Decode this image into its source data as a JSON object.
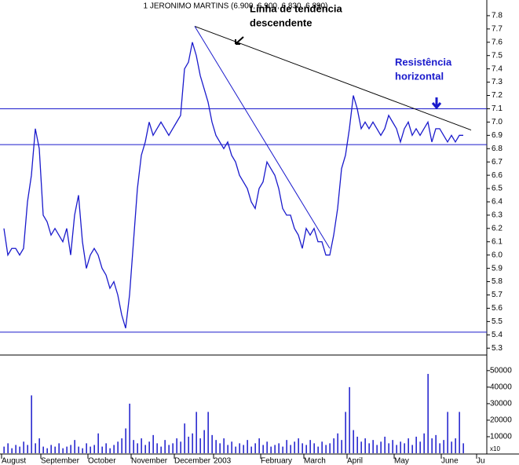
{
  "chart_data": {
    "type": "line",
    "title": "1 JERONIMO MARTINS (6.900, 6.900, 6.830, 6.890)",
    "annotations": [
      {
        "lines": [
          "Linha de tendência",
          "descendente"
        ],
        "color": "#000000"
      },
      {
        "lines": [
          "Resistência",
          "horizontal"
        ],
        "color": "#1a1acc"
      }
    ],
    "volume_unit_label": "x10",
    "categories": [
      "August",
      null,
      null,
      null,
      null,
      null,
      null,
      null,
      null,
      null,
      "September",
      null,
      null,
      null,
      null,
      null,
      null,
      null,
      null,
      null,
      null,
      null,
      "October",
      null,
      null,
      null,
      null,
      null,
      null,
      null,
      null,
      null,
      null,
      "November",
      null,
      null,
      null,
      null,
      null,
      null,
      null,
      null,
      null,
      null,
      "December",
      null,
      null,
      null,
      null,
      null,
      null,
      null,
      null,
      null,
      "2003",
      null,
      null,
      null,
      null,
      null,
      null,
      null,
      null,
      null,
      null,
      null,
      "February",
      null,
      null,
      null,
      null,
      null,
      null,
      null,
      null,
      null,
      null,
      "March",
      null,
      null,
      null,
      null,
      null,
      null,
      null,
      null,
      null,
      null,
      "April",
      null,
      null,
      null,
      null,
      null,
      null,
      null,
      null,
      null,
      null,
      null,
      "May",
      null,
      null,
      null,
      null,
      null,
      null,
      null,
      null,
      null,
      null,
      null,
      "June",
      null,
      null,
      null,
      null,
      null,
      null,
      null,
      null,
      "Ju"
    ],
    "series": [
      {
        "name": "JERONIMO MARTINS",
        "color": "#1a1acc",
        "values": [
          6.2,
          6.0,
          6.05,
          6.05,
          6.0,
          6.05,
          6.4,
          6.6,
          6.95,
          6.8,
          6.3,
          6.25,
          6.15,
          6.2,
          6.15,
          6.1,
          6.2,
          6.0,
          6.3,
          6.45,
          6.1,
          5.9,
          6.0,
          6.05,
          6.0,
          5.9,
          5.85,
          5.75,
          5.8,
          5.7,
          5.55,
          5.45,
          5.7,
          6.1,
          6.5,
          6.75,
          6.85,
          7.0,
          6.9,
          6.95,
          7.0,
          6.95,
          6.9,
          6.95,
          7.0,
          7.05,
          7.4,
          7.45,
          7.6,
          7.5,
          7.35,
          7.25,
          7.15,
          7.0,
          6.9,
          6.85,
          6.8,
          6.85,
          6.75,
          6.7,
          6.6,
          6.55,
          6.5,
          6.4,
          6.35,
          6.5,
          6.55,
          6.7,
          6.65,
          6.6,
          6.5,
          6.35,
          6.3,
          6.3,
          6.2,
          6.15,
          6.05,
          6.2,
          6.15,
          6.2,
          6.1,
          6.1,
          6.0,
          6.0,
          6.15,
          6.35,
          6.65,
          6.75,
          6.95,
          7.2,
          7.1,
          6.95,
          7.0,
          6.95,
          7.0,
          6.95,
          6.9,
          6.95,
          7.05,
          7.0,
          6.95,
          6.85,
          6.95,
          7.0,
          6.9,
          6.95,
          6.9,
          6.95,
          7.0,
          6.85,
          6.95,
          6.95,
          6.9,
          6.85,
          6.9,
          6.85,
          6.9,
          6.9,
          null,
          null,
          null,
          null
        ]
      },
      {
        "name": "Volume",
        "axis": "volume",
        "color": "#1a1acc",
        "values": [
          4000,
          6000,
          3000,
          5000,
          4000,
          7000,
          5000,
          35000,
          6000,
          9000,
          4000,
          3000,
          5000,
          4000,
          6000,
          3000,
          4000,
          5000,
          8000,
          4000,
          3000,
          6000,
          4000,
          5000,
          12000,
          4000,
          6000,
          3000,
          5000,
          7000,
          9000,
          15000,
          30000,
          8000,
          6000,
          9000,
          5000,
          7000,
          11000,
          6000,
          4000,
          8000,
          5000,
          6000,
          9000,
          7000,
          18000,
          10000,
          12000,
          25000,
          9000,
          14000,
          25000,
          11000,
          8000,
          6000,
          9000,
          5000,
          7000,
          4000,
          6000,
          5000,
          8000,
          4000,
          6000,
          9000,
          5000,
          7000,
          4000,
          5000,
          6000,
          4000,
          8000,
          5000,
          7000,
          9000,
          6000,
          5000,
          8000,
          6000,
          4000,
          7000,
          5000,
          6000,
          9000,
          12000,
          8000,
          25000,
          40000,
          14000,
          10000,
          7000,
          9000,
          6000,
          8000,
          5000,
          7000,
          10000,
          6000,
          8000,
          5000,
          7000,
          6000,
          9000,
          5000,
          10000,
          7000,
          12000,
          48000,
          9000,
          11000,
          6000,
          8000,
          25000,
          7000,
          9000,
          25000,
          6000,
          null,
          null,
          null,
          null
        ]
      }
    ],
    "ylim": [
      5.26,
      7.9
    ],
    "yticks": [
      5.3,
      5.4,
      5.5,
      5.6,
      5.7,
      5.8,
      5.9,
      {
        "value": 6,
        "label": "6.0"
      },
      6.1,
      6.2,
      6.3,
      6.4,
      6.5,
      6.6,
      6.7,
      6.8,
      6.9,
      {
        "value": 7,
        "label": "7.0"
      },
      7.1,
      7.2,
      7.3,
      7.4,
      7.5,
      7.6,
      7.7,
      7.8
    ],
    "volume_ylim": [
      0,
      58000
    ],
    "volume_yticks": [
      10000,
      20000,
      30000,
      40000,
      50000
    ],
    "hlines": [
      {
        "value": 7.1,
        "color": "#1a1acc"
      },
      {
        "value": 6.83,
        "color": "#1a1acc"
      },
      {
        "value": 5.42,
        "color": "#1a1acc"
      }
    ],
    "trendlines": [
      {
        "from": [
          48.6,
          7.72
        ],
        "to": [
          119,
          6.94
        ],
        "color": "#000000"
      },
      {
        "from": [
          48.6,
          7.72
        ],
        "to": [
          83,
          6.05
        ],
        "color": "#1a1acc"
      }
    ]
  }
}
